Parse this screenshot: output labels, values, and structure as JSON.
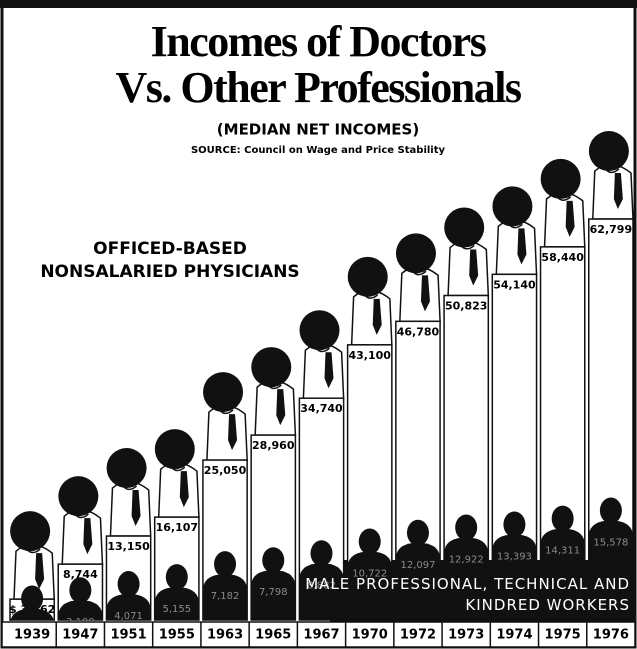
{
  "chart_data": {
    "type": "pictogram-bar",
    "title": [
      "Incomes of Doctors",
      "Vs. Other Professionals"
    ],
    "subtitle": "(MEDIAN NET INCOMES)",
    "source": "SOURCE: Council on Wage and Price Stability",
    "categories": [
      "1939",
      "1947",
      "1951",
      "1955",
      "1963",
      "1965",
      "1967",
      "1970",
      "1972",
      "1973",
      "1974",
      "1975",
      "1976"
    ],
    "ylim": [
      0,
      65000
    ],
    "series": [
      {
        "name": "OFFICED-BASED NONSALARIED PHYSICIANS",
        "color": "#ffffff",
        "values": [
          3262,
          8744,
          13150,
          16107,
          25050,
          28960,
          34740,
          43100,
          46780,
          50823,
          54140,
          58440,
          62799
        ],
        "value_labels": [
          "$ 3,262",
          "8,744",
          "13,150",
          "16,107",
          "25,050",
          "28,960",
          "34,740",
          "43,100",
          "46,780",
          "50,823",
          "54,140",
          "58,440",
          "62,799"
        ]
      },
      {
        "name": "MALE PROFESSIONAL, TECHNICAL AND KINDRED WORKERS",
        "color": "#111111",
        "values": [
          1810,
          3100,
          4071,
          5155,
          7182,
          7798,
          8882,
          10722,
          12097,
          12922,
          13393,
          14311,
          15578
        ],
        "value_labels": [
          "$ 1,810",
          "3,100",
          "4,071",
          "5,155",
          "7,182",
          "7,798",
          "8,882",
          "10,722",
          "12,097",
          "12,922",
          "13,393",
          "14,311",
          "15,578"
        ]
      }
    ]
  }
}
